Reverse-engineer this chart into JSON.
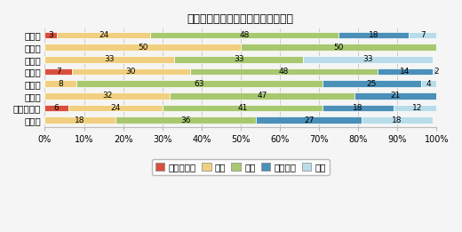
{
  "title": "経営者の供給意欲について（割合）",
  "categories": [
    "全　国",
    "北海道",
    "東　北",
    "関　東",
    "中　部",
    "近　畿",
    "中国・四国",
    "九　州"
  ],
  "series": {
    "かなり強い": [
      3,
      0,
      0,
      7,
      0,
      0,
      6,
      0
    ],
    "強い": [
      24,
      50,
      33,
      30,
      8,
      32,
      24,
      18
    ],
    "普通": [
      48,
      50,
      33,
      48,
      63,
      47,
      41,
      36
    ],
    "やや弱い": [
      18,
      0,
      0,
      14,
      25,
      21,
      18,
      27
    ],
    "弱い": [
      7,
      0,
      33,
      2,
      4,
      0,
      12,
      18
    ]
  },
  "colors": {
    "かなり強い": "#d94f3d",
    "強い": "#f0d080",
    "普通": "#a8c870",
    "やや弱い": "#4a90b8",
    "弱い": "#b8dcea"
  },
  "legend_order": [
    "かなり強い",
    "強い",
    "普通",
    "やや弱い",
    "弱い"
  ],
  "xlim": [
    0,
    100
  ],
  "xticks": [
    0,
    10,
    20,
    30,
    40,
    50,
    60,
    70,
    80,
    90,
    100
  ],
  "background_color": "#f5f5f5",
  "bar_height": 0.55,
  "title_fontsize": 9,
  "tick_fontsize": 7,
  "label_fontsize": 7.5,
  "value_fontsize": 6.5
}
